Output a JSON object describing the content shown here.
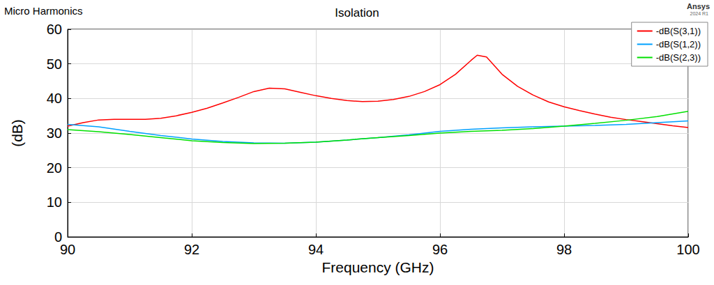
{
  "chart_data": {
    "type": "line",
    "title": "Isolation",
    "annotations": [
      "Micro Harmonics",
      "Ansys",
      "2024 R1"
    ],
    "x_label": "Frequency (GHz)",
    "y_label": "(dB)",
    "xlim": [
      90,
      100
    ],
    "xticks": [
      90,
      92,
      94,
      96,
      98,
      100
    ],
    "ylim": [
      0,
      60
    ],
    "yticks": [
      0,
      10,
      20,
      30,
      40,
      50,
      60
    ],
    "grid": true,
    "legend": "top-right",
    "series": [
      {
        "name": "-dB(S(3,1))",
        "color": "#ff0000",
        "x": [
          90,
          90.25,
          90.5,
          90.75,
          91,
          91.25,
          91.5,
          91.75,
          92,
          92.25,
          92.5,
          92.75,
          93,
          93.25,
          93.5,
          93.75,
          94,
          94.25,
          94.5,
          94.75,
          95,
          95.25,
          95.5,
          95.75,
          96,
          96.25,
          96.5,
          96.6,
          96.75,
          97,
          97.25,
          97.5,
          97.75,
          98,
          98.25,
          98.5,
          98.75,
          99,
          99.25,
          99.5,
          99.75,
          100
        ],
        "values": [
          32,
          33,
          33.8,
          34,
          34,
          34,
          34.3,
          35,
          36,
          37.2,
          38.7,
          40.3,
          42,
          43,
          42.8,
          41.8,
          40.8,
          40,
          39.4,
          39.1,
          39.2,
          39.7,
          40.6,
          42,
          44,
          47,
          51,
          52.5,
          52,
          47,
          43.5,
          41,
          39,
          37.6,
          36.5,
          35.5,
          34.6,
          33.9,
          33.3,
          32.7,
          32.1,
          31.6
        ]
      },
      {
        "name": "-dB(S(1,2))",
        "color": "#00a0ff",
        "x": [
          90,
          90.5,
          91,
          91.5,
          92,
          92.5,
          93,
          93.5,
          94,
          94.5,
          95,
          95.5,
          96,
          96.5,
          97,
          97.5,
          98,
          98.5,
          99,
          99.5,
          100
        ],
        "values": [
          32.5,
          31.8,
          30.5,
          29.3,
          28.3,
          27.6,
          27.2,
          27.1,
          27.4,
          28,
          28.7,
          29.5,
          30.5,
          31.1,
          31.5,
          31.8,
          32,
          32.2,
          32.5,
          33,
          33.5
        ]
      },
      {
        "name": "-dB(S(2,3))",
        "color": "#00e000",
        "x": [
          90,
          90.5,
          91,
          91.5,
          92,
          92.5,
          93,
          93.5,
          94,
          94.5,
          95,
          95.5,
          96,
          96.5,
          97,
          97.5,
          98,
          98.5,
          99,
          99.5,
          100
        ],
        "values": [
          31,
          30.4,
          29.6,
          28.7,
          27.8,
          27.3,
          27,
          27.1,
          27.4,
          28,
          28.7,
          29.3,
          30,
          30.5,
          30.8,
          31.3,
          32,
          32.8,
          33.7,
          34.8,
          36.3
        ]
      }
    ]
  }
}
